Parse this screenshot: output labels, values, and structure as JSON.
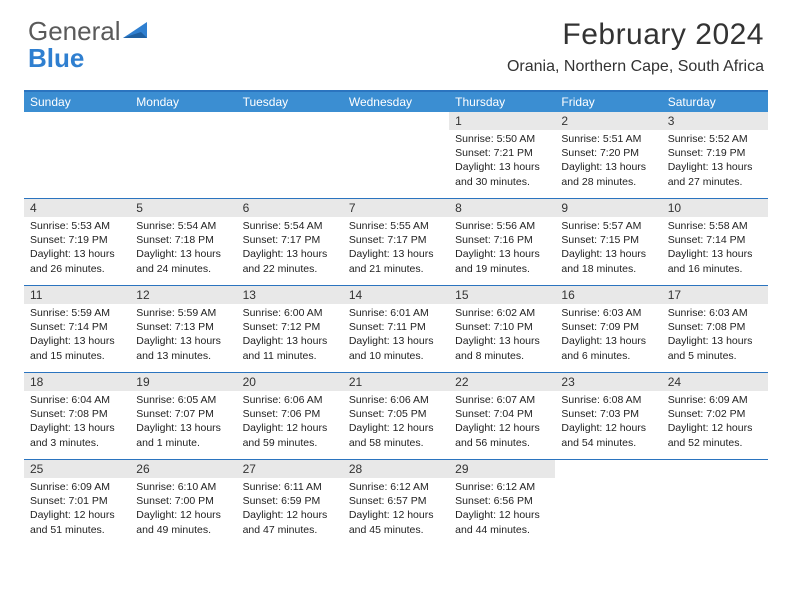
{
  "brand": {
    "word1": "General",
    "word2": "Blue"
  },
  "title": {
    "month": "February 2024",
    "location": "Orania, Northern Cape, South Africa"
  },
  "colors": {
    "header_bar": "#3b8ed2",
    "header_rule": "#2b74bf",
    "daynum_bg": "#e8e8e8",
    "text": "#333333",
    "logo_gray": "#5a5a5a",
    "logo_blue": "#2f7fd0"
  },
  "weekdays": [
    "Sunday",
    "Monday",
    "Tuesday",
    "Wednesday",
    "Thursday",
    "Friday",
    "Saturday"
  ],
  "weeks": [
    [
      {
        "empty": true
      },
      {
        "empty": true
      },
      {
        "empty": true
      },
      {
        "empty": true
      },
      {
        "n": "1",
        "sr": "Sunrise: 5:50 AM",
        "ss": "Sunset: 7:21 PM",
        "d1": "Daylight: 13 hours",
        "d2": "and 30 minutes."
      },
      {
        "n": "2",
        "sr": "Sunrise: 5:51 AM",
        "ss": "Sunset: 7:20 PM",
        "d1": "Daylight: 13 hours",
        "d2": "and 28 minutes."
      },
      {
        "n": "3",
        "sr": "Sunrise: 5:52 AM",
        "ss": "Sunset: 7:19 PM",
        "d1": "Daylight: 13 hours",
        "d2": "and 27 minutes."
      }
    ],
    [
      {
        "n": "4",
        "sr": "Sunrise: 5:53 AM",
        "ss": "Sunset: 7:19 PM",
        "d1": "Daylight: 13 hours",
        "d2": "and 26 minutes."
      },
      {
        "n": "5",
        "sr": "Sunrise: 5:54 AM",
        "ss": "Sunset: 7:18 PM",
        "d1": "Daylight: 13 hours",
        "d2": "and 24 minutes."
      },
      {
        "n": "6",
        "sr": "Sunrise: 5:54 AM",
        "ss": "Sunset: 7:17 PM",
        "d1": "Daylight: 13 hours",
        "d2": "and 22 minutes."
      },
      {
        "n": "7",
        "sr": "Sunrise: 5:55 AM",
        "ss": "Sunset: 7:17 PM",
        "d1": "Daylight: 13 hours",
        "d2": "and 21 minutes."
      },
      {
        "n": "8",
        "sr": "Sunrise: 5:56 AM",
        "ss": "Sunset: 7:16 PM",
        "d1": "Daylight: 13 hours",
        "d2": "and 19 minutes."
      },
      {
        "n": "9",
        "sr": "Sunrise: 5:57 AM",
        "ss": "Sunset: 7:15 PM",
        "d1": "Daylight: 13 hours",
        "d2": "and 18 minutes."
      },
      {
        "n": "10",
        "sr": "Sunrise: 5:58 AM",
        "ss": "Sunset: 7:14 PM",
        "d1": "Daylight: 13 hours",
        "d2": "and 16 minutes."
      }
    ],
    [
      {
        "n": "11",
        "sr": "Sunrise: 5:59 AM",
        "ss": "Sunset: 7:14 PM",
        "d1": "Daylight: 13 hours",
        "d2": "and 15 minutes."
      },
      {
        "n": "12",
        "sr": "Sunrise: 5:59 AM",
        "ss": "Sunset: 7:13 PM",
        "d1": "Daylight: 13 hours",
        "d2": "and 13 minutes."
      },
      {
        "n": "13",
        "sr": "Sunrise: 6:00 AM",
        "ss": "Sunset: 7:12 PM",
        "d1": "Daylight: 13 hours",
        "d2": "and 11 minutes."
      },
      {
        "n": "14",
        "sr": "Sunrise: 6:01 AM",
        "ss": "Sunset: 7:11 PM",
        "d1": "Daylight: 13 hours",
        "d2": "and 10 minutes."
      },
      {
        "n": "15",
        "sr": "Sunrise: 6:02 AM",
        "ss": "Sunset: 7:10 PM",
        "d1": "Daylight: 13 hours",
        "d2": "and 8 minutes."
      },
      {
        "n": "16",
        "sr": "Sunrise: 6:03 AM",
        "ss": "Sunset: 7:09 PM",
        "d1": "Daylight: 13 hours",
        "d2": "and 6 minutes."
      },
      {
        "n": "17",
        "sr": "Sunrise: 6:03 AM",
        "ss": "Sunset: 7:08 PM",
        "d1": "Daylight: 13 hours",
        "d2": "and 5 minutes."
      }
    ],
    [
      {
        "n": "18",
        "sr": "Sunrise: 6:04 AM",
        "ss": "Sunset: 7:08 PM",
        "d1": "Daylight: 13 hours",
        "d2": "and 3 minutes."
      },
      {
        "n": "19",
        "sr": "Sunrise: 6:05 AM",
        "ss": "Sunset: 7:07 PM",
        "d1": "Daylight: 13 hours",
        "d2": "and 1 minute."
      },
      {
        "n": "20",
        "sr": "Sunrise: 6:06 AM",
        "ss": "Sunset: 7:06 PM",
        "d1": "Daylight: 12 hours",
        "d2": "and 59 minutes."
      },
      {
        "n": "21",
        "sr": "Sunrise: 6:06 AM",
        "ss": "Sunset: 7:05 PM",
        "d1": "Daylight: 12 hours",
        "d2": "and 58 minutes."
      },
      {
        "n": "22",
        "sr": "Sunrise: 6:07 AM",
        "ss": "Sunset: 7:04 PM",
        "d1": "Daylight: 12 hours",
        "d2": "and 56 minutes."
      },
      {
        "n": "23",
        "sr": "Sunrise: 6:08 AM",
        "ss": "Sunset: 7:03 PM",
        "d1": "Daylight: 12 hours",
        "d2": "and 54 minutes."
      },
      {
        "n": "24",
        "sr": "Sunrise: 6:09 AM",
        "ss": "Sunset: 7:02 PM",
        "d1": "Daylight: 12 hours",
        "d2": "and 52 minutes."
      }
    ],
    [
      {
        "n": "25",
        "sr": "Sunrise: 6:09 AM",
        "ss": "Sunset: 7:01 PM",
        "d1": "Daylight: 12 hours",
        "d2": "and 51 minutes."
      },
      {
        "n": "26",
        "sr": "Sunrise: 6:10 AM",
        "ss": "Sunset: 7:00 PM",
        "d1": "Daylight: 12 hours",
        "d2": "and 49 minutes."
      },
      {
        "n": "27",
        "sr": "Sunrise: 6:11 AM",
        "ss": "Sunset: 6:59 PM",
        "d1": "Daylight: 12 hours",
        "d2": "and 47 minutes."
      },
      {
        "n": "28",
        "sr": "Sunrise: 6:12 AM",
        "ss": "Sunset: 6:57 PM",
        "d1": "Daylight: 12 hours",
        "d2": "and 45 minutes."
      },
      {
        "n": "29",
        "sr": "Sunrise: 6:12 AM",
        "ss": "Sunset: 6:56 PM",
        "d1": "Daylight: 12 hours",
        "d2": "and 44 minutes."
      },
      {
        "empty": true
      },
      {
        "empty": true
      }
    ]
  ]
}
